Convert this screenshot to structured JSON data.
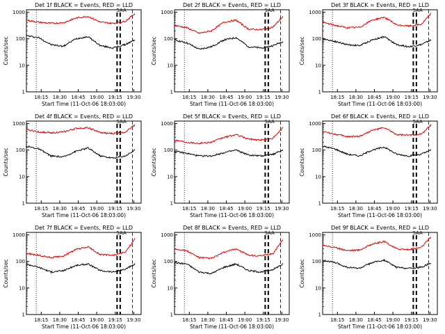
{
  "layout": {
    "rows": 3,
    "cols": 3
  },
  "common": {
    "ylabel": "Counts/sec",
    "xlabel": "Start Time (11-Oct-06 18:03:00)",
    "yticks": [
      "1",
      "10",
      "100",
      "1000"
    ],
    "xticks": [
      "18:15",
      "18:30",
      "18:45",
      "19:00",
      "19:15",
      "19:30"
    ],
    "colors": {
      "events": "#000000",
      "lld": "#e00000"
    },
    "annotation": "SAA"
  },
  "chart_data": [
    {
      "type": "line",
      "title": "Det 1f BLACK = Events, RED = LLD",
      "yscale": "log",
      "ylim": [
        1,
        1000
      ],
      "x_range_minutes_from_start": [
        0,
        93
      ],
      "series": [
        {
          "name": "Events",
          "color": "#000000",
          "x_min": [
            0,
            10,
            20,
            30,
            40,
            50,
            60,
            70,
            80,
            88
          ],
          "y": [
            130,
            110,
            60,
            52,
            100,
            120,
            55,
            45,
            60,
            90
          ]
        },
        {
          "name": "LLD",
          "color": "#e00000",
          "x_min": [
            0,
            10,
            20,
            30,
            40,
            50,
            60,
            70,
            80,
            88
          ],
          "y": [
            500,
            420,
            380,
            400,
            600,
            700,
            420,
            380,
            450,
            900
          ]
        }
      ]
    },
    {
      "type": "line",
      "title": "Det 2f BLACK = Events, RED = LLD",
      "yscale": "log",
      "ylim": [
        1,
        1000
      ],
      "x_range_minutes_from_start": [
        0,
        93
      ],
      "series": [
        {
          "name": "Events",
          "color": "#000000",
          "x_min": [
            0,
            10,
            20,
            30,
            40,
            50,
            60,
            70,
            80,
            88
          ],
          "y": [
            90,
            70,
            40,
            50,
            90,
            110,
            50,
            45,
            55,
            80
          ]
        },
        {
          "name": "LLD",
          "color": "#e00000",
          "x_min": [
            0,
            10,
            20,
            30,
            40,
            50,
            60,
            70,
            80,
            88
          ],
          "y": [
            320,
            260,
            160,
            200,
            420,
            500,
            230,
            220,
            280,
            700
          ]
        }
      ]
    },
    {
      "type": "line",
      "title": "Det 3f BLACK = Events, RED = LLD",
      "yscale": "log",
      "ylim": [
        1,
        1000
      ],
      "x_range_minutes_from_start": [
        0,
        93
      ],
      "series": [
        {
          "name": "Events",
          "color": "#000000",
          "x_min": [
            0,
            10,
            20,
            30,
            40,
            50,
            60,
            70,
            80,
            88
          ],
          "y": [
            100,
            80,
            60,
            55,
            90,
            120,
            60,
            50,
            60,
            90
          ]
        },
        {
          "name": "LLD",
          "color": "#e00000",
          "x_min": [
            0,
            10,
            20,
            30,
            40,
            50,
            60,
            70,
            80,
            88
          ],
          "y": [
            420,
            320,
            260,
            270,
            500,
            650,
            330,
            300,
            350,
            900
          ]
        }
      ]
    },
    {
      "type": "line",
      "title": "Det 4f BLACK = Events, RED = LLD",
      "yscale": "log",
      "ylim": [
        1,
        1000
      ],
      "x_range_minutes_from_start": [
        0,
        93
      ],
      "series": [
        {
          "name": "Events",
          "color": "#000000",
          "x_min": [
            0,
            10,
            20,
            30,
            40,
            50,
            60,
            70,
            80,
            88
          ],
          "y": [
            140,
            110,
            60,
            55,
            90,
            120,
            60,
            50,
            60,
            100
          ]
        },
        {
          "name": "LLD",
          "color": "#e00000",
          "x_min": [
            0,
            10,
            20,
            30,
            40,
            50,
            60,
            70,
            80,
            88
          ],
          "y": [
            600,
            480,
            450,
            480,
            650,
            700,
            450,
            420,
            480,
            900
          ]
        }
      ]
    },
    {
      "type": "line",
      "title": "Det 5f BLACK = Events, RED = LLD",
      "yscale": "log",
      "ylim": [
        1,
        1000
      ],
      "x_range_minutes_from_start": [
        0,
        93
      ],
      "series": [
        {
          "name": "Events",
          "color": "#000000",
          "x_min": [
            0,
            10,
            20,
            30,
            40,
            50,
            60,
            70,
            80,
            88
          ],
          "y": [
            90,
            75,
            60,
            60,
            80,
            100,
            65,
            60,
            70,
            100
          ]
        },
        {
          "name": "LLD",
          "color": "#e00000",
          "x_min": [
            0,
            10,
            20,
            30,
            40,
            50,
            60,
            70,
            80,
            88
          ],
          "y": [
            240,
            200,
            180,
            200,
            300,
            380,
            260,
            240,
            280,
            700
          ]
        }
      ]
    },
    {
      "type": "line",
      "title": "Det 6f BLACK = Events, RED = LLD",
      "yscale": "log",
      "ylim": [
        1,
        1000
      ],
      "x_range_minutes_from_start": [
        0,
        93
      ],
      "series": [
        {
          "name": "Events",
          "color": "#000000",
          "x_min": [
            0,
            10,
            20,
            30,
            40,
            50,
            60,
            70,
            80,
            88
          ],
          "y": [
            140,
            110,
            70,
            60,
            100,
            130,
            70,
            60,
            70,
            100
          ]
        },
        {
          "name": "LLD",
          "color": "#e00000",
          "x_min": [
            0,
            10,
            20,
            30,
            40,
            50,
            60,
            70,
            80,
            88
          ],
          "y": [
            500,
            400,
            320,
            330,
            550,
            700,
            380,
            360,
            400,
            900
          ]
        }
      ]
    },
    {
      "type": "line",
      "title": "Det 7f BLACK = Events, RED = LLD",
      "yscale": "log",
      "ylim": [
        1,
        1000
      ],
      "x_range_minutes_from_start": [
        0,
        93
      ],
      "series": [
        {
          "name": "Events",
          "color": "#000000",
          "x_min": [
            0,
            10,
            20,
            30,
            40,
            50,
            60,
            70,
            80,
            88
          ],
          "y": [
            80,
            60,
            40,
            45,
            70,
            80,
            45,
            40,
            50,
            80
          ]
        },
        {
          "name": "LLD",
          "color": "#e00000",
          "x_min": [
            0,
            10,
            20,
            30,
            40,
            50,
            60,
            70,
            80,
            88
          ],
          "y": [
            200,
            170,
            140,
            160,
            280,
            350,
            180,
            170,
            220,
            700
          ]
        }
      ]
    },
    {
      "type": "line",
      "title": "Det 8f BLACK = Events, RED = LLD",
      "yscale": "log",
      "ylim": [
        1,
        1000
      ],
      "x_range_minutes_from_start": [
        0,
        93
      ],
      "series": [
        {
          "name": "Events",
          "color": "#000000",
          "x_min": [
            0,
            10,
            20,
            30,
            40,
            50,
            60,
            70,
            80,
            88
          ],
          "y": [
            90,
            80,
            40,
            35,
            60,
            80,
            45,
            40,
            50,
            80
          ]
        },
        {
          "name": "LLD",
          "color": "#e00000",
          "x_min": [
            0,
            10,
            20,
            30,
            40,
            50,
            60,
            70,
            80,
            88
          ],
          "y": [
            300,
            250,
            140,
            130,
            220,
            300,
            170,
            160,
            200,
            700
          ]
        }
      ]
    },
    {
      "type": "line",
      "title": "Det 9f BLACK = Events, RED = LLD",
      "yscale": "log",
      "ylim": [
        1,
        1000
      ],
      "x_range_minutes_from_start": [
        0,
        93
      ],
      "series": [
        {
          "name": "Events",
          "color": "#000000",
          "x_min": [
            0,
            10,
            20,
            30,
            40,
            50,
            60,
            70,
            80,
            88
          ],
          "y": [
            110,
            90,
            60,
            55,
            90,
            110,
            60,
            55,
            60,
            90
          ]
        },
        {
          "name": "LLD",
          "color": "#e00000",
          "x_min": [
            0,
            10,
            20,
            30,
            40,
            50,
            60,
            70,
            80,
            88
          ],
          "y": [
            420,
            330,
            260,
            270,
            450,
            560,
            300,
            280,
            340,
            850
          ]
        }
      ]
    }
  ]
}
